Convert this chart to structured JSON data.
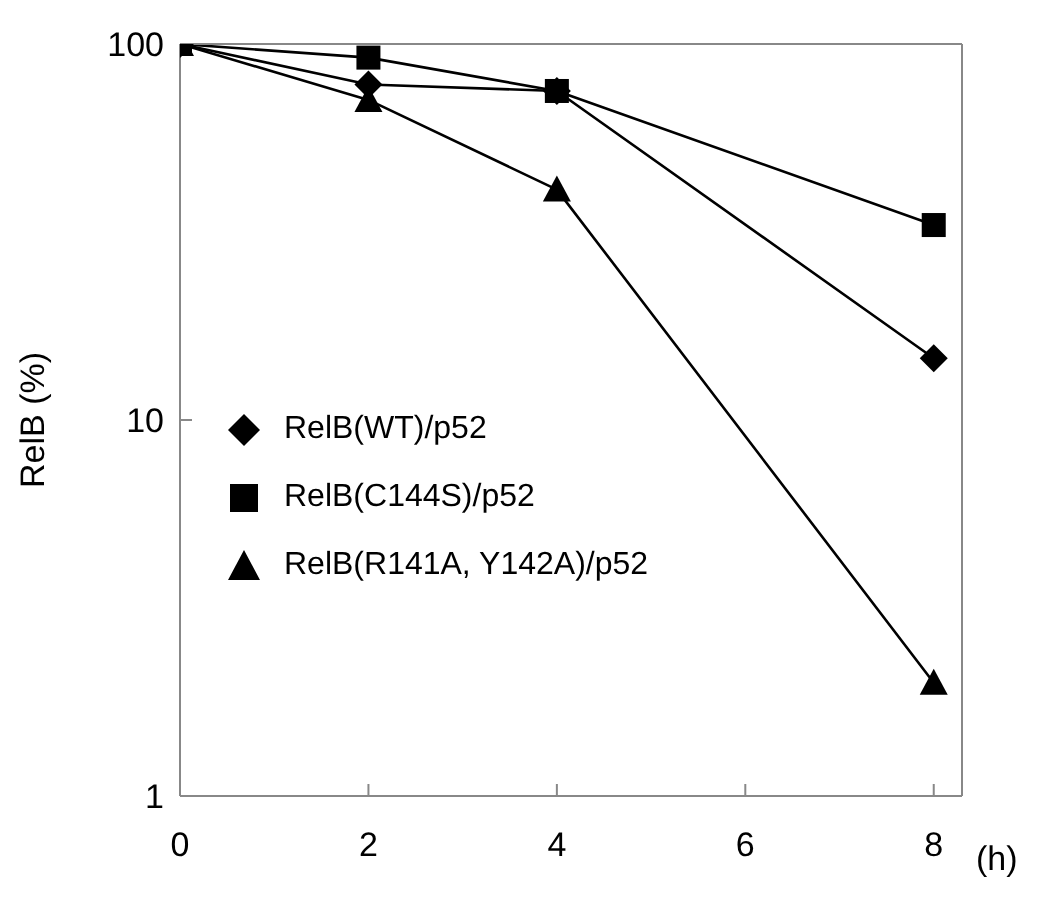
{
  "chart_data": {
    "type": "line",
    "ylabel": "RelB (%)",
    "xlabel": "(h)",
    "log": "y",
    "xlim": [
      0,
      8.3
    ],
    "xticks": [
      0,
      2,
      4,
      6,
      8
    ],
    "ylim": [
      1,
      100
    ],
    "yticks": [
      1,
      10,
      100
    ],
    "legend": "left",
    "grid": false,
    "x": [
      0,
      2,
      4,
      8
    ],
    "series": [
      {
        "name": "RelB(WT)/p52",
        "color": "#000000",
        "marker": "diamond",
        "values": [
          100,
          78,
          75,
          14.6
        ]
      },
      {
        "name": "RelB(C144S)/p52",
        "color": "#000000",
        "marker": "square",
        "values": [
          100,
          92,
          75,
          33
        ]
      },
      {
        "name": "RelB(R141A, Y142A)/p52",
        "color": "#000000",
        "marker": "triangle",
        "values": [
          100,
          71,
          41,
          2
        ]
      }
    ]
  }
}
